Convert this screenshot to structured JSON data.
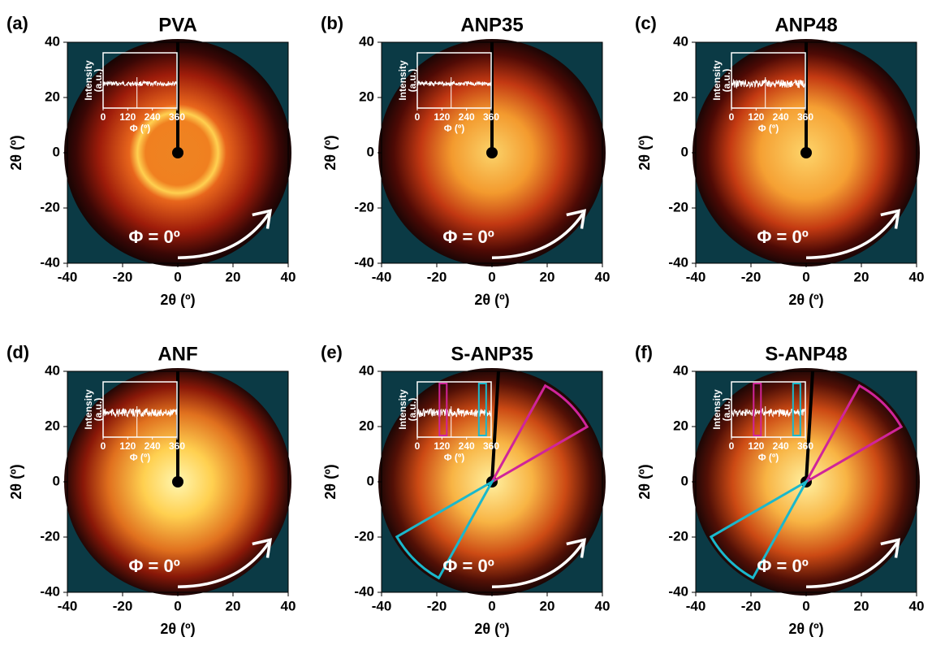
{
  "panels": [
    {
      "label": "(a)",
      "title": "PVA"
    },
    {
      "label": "(b)",
      "title": "ANP35"
    },
    {
      "label": "(c)",
      "title": "ANP48"
    },
    {
      "label": "(d)",
      "title": "ANF"
    },
    {
      "label": "(e)",
      "title": "S-ANP35"
    },
    {
      "label": "(f)",
      "title": "S-ANP48"
    }
  ],
  "axes": {
    "xlabel": "2θ (º)",
    "ylabel": "2θ (º)",
    "xlim": [
      -40,
      40
    ],
    "ylim": [
      -40,
      40
    ],
    "xticks": [
      -40,
      -20,
      0,
      20,
      40
    ],
    "yticks": [
      -40,
      -20,
      0,
      20,
      40
    ]
  },
  "inset": {
    "ylabel_line1": "Intensity",
    "ylabel_line2": "(a.u.)",
    "xlabel": "Φ (º)",
    "xlim": [
      0,
      360
    ],
    "xticks": [
      0,
      120,
      240,
      360
    ]
  },
  "annotation": "Φ = 0º"
}
